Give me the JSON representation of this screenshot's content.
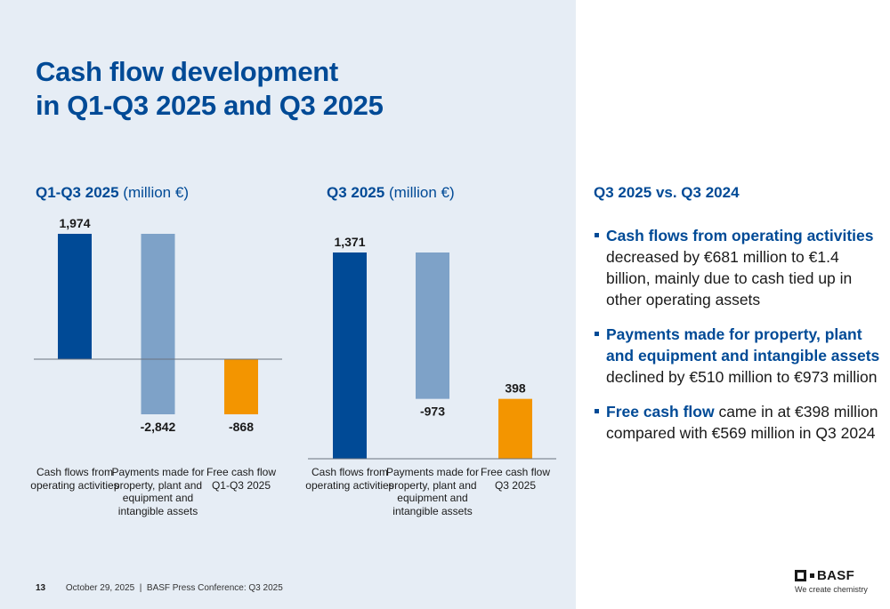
{
  "slide": {
    "title_line1": "Cash flow development",
    "title_line2": "in Q1-Q3 2025 and Q3 2025",
    "page_number": "13",
    "footer_text": "October 29, 2025  |  BASF Press Conference: Q3 2025",
    "logo_text": "BASF",
    "logo_tagline": "We create chemistry"
  },
  "colors": {
    "brand_blue": "#004a96",
    "light_blue": "#7ea2c8",
    "orange": "#f39500",
    "panel_bg": "#e6edf5"
  },
  "chart_data": [
    {
      "type": "bar",
      "subtype": "waterfall",
      "title_bold": "Q1-Q3 2025",
      "title_unit": "(million €)",
      "categories": [
        "Cash flows from operating activities",
        "Payments made for property, plant and equipment and intangible assets",
        "Free cash flow Q1-Q3 2025"
      ],
      "category_lines": [
        [
          "Cash flows from",
          "operating activities"
        ],
        [
          "Payments made for",
          "property, plant and",
          "equipment and",
          "intangible assets"
        ],
        [
          "Free cash flow",
          "Q1-Q3 2025"
        ]
      ],
      "values": [
        1974,
        -2842,
        -868
      ],
      "labels": [
        "1,974",
        "-2,842",
        "-868"
      ],
      "bar_roles": [
        "absolute",
        "delta",
        "total"
      ],
      "bar_colors": [
        "#004a96",
        "#7ea2c8",
        "#f39500"
      ],
      "ylim": [
        -868,
        1974
      ],
      "grid": false,
      "xlabel": "",
      "ylabel": ""
    },
    {
      "type": "bar",
      "subtype": "waterfall",
      "title_bold": "Q3 2025",
      "title_unit": "(million €)",
      "categories": [
        "Cash flows from operating activities",
        "Payments made for property, plant and equipment and intangible assets",
        "Free cash flow Q3 2025"
      ],
      "category_lines": [
        [
          "Cash flows from",
          "operating activities"
        ],
        [
          "Payments made for",
          "property, plant and",
          "equipment and",
          "intangible assets"
        ],
        [
          "Free cash flow",
          "Q3 2025"
        ]
      ],
      "values": [
        1371,
        -973,
        398
      ],
      "labels": [
        "1,371",
        "-973",
        "398"
      ],
      "bar_roles": [
        "absolute",
        "delta",
        "total"
      ],
      "bar_colors": [
        "#004a96",
        "#7ea2c8",
        "#f39500"
      ],
      "ylim": [
        0,
        1371
      ],
      "grid": false,
      "xlabel": "",
      "ylabel": ""
    }
  ],
  "commentary": {
    "heading": "Q3 2025 vs. Q3 2024",
    "bullets": [
      {
        "highlight": "Cash flows from operating activities",
        "text": " decreased by €681 million to €1.4 billion, mainly due to cash tied up in other operating assets"
      },
      {
        "highlight": "Payments made for property, plant and equipment and intangible assets",
        "text": " declined by €510 million to €973 million"
      },
      {
        "highlight": "Free cash flow",
        "text": " came in at €398 million compared with €569 million in Q3 2024"
      }
    ]
  }
}
